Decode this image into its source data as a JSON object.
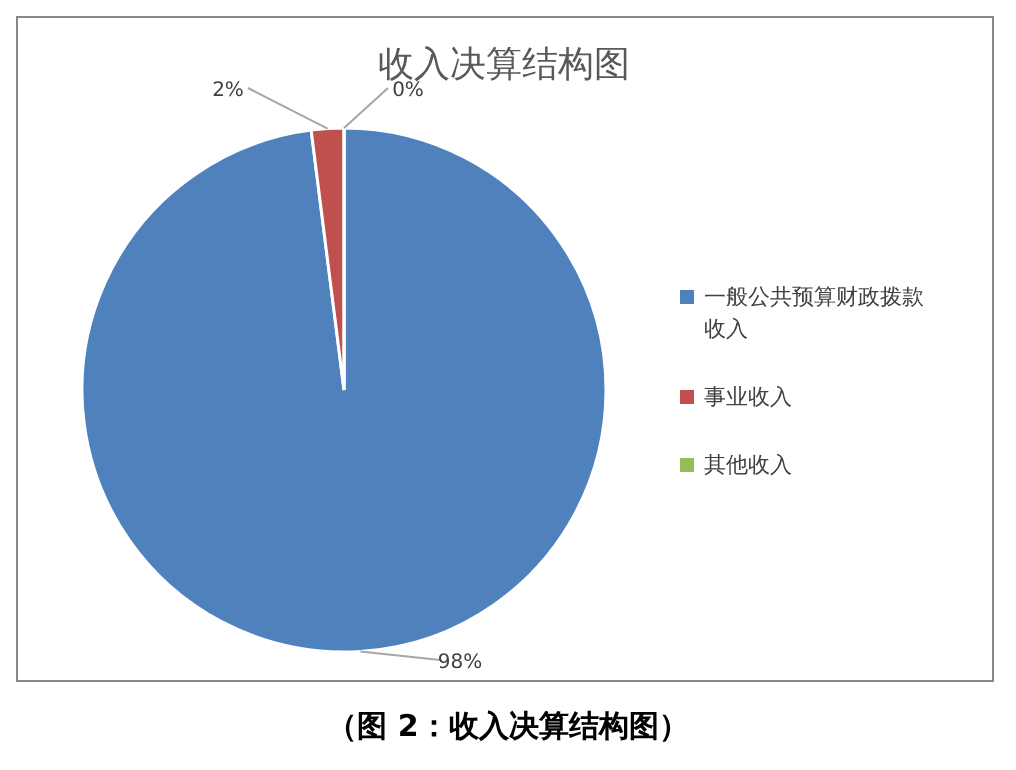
{
  "chart_data": {
    "type": "pie",
    "title": "收入决算结构图",
    "categories": [
      "一般公共预算财政拨款收入",
      "事业收入",
      "其他收入"
    ],
    "values": [
      98,
      2,
      0
    ],
    "value_labels": [
      "98%",
      "2%",
      "0%"
    ],
    "colors": [
      "#4f81bd",
      "#c0504d",
      "#9bbb59"
    ],
    "legend": "right",
    "annotations": [
      "（图 2：收入决算结构图）"
    ]
  }
}
